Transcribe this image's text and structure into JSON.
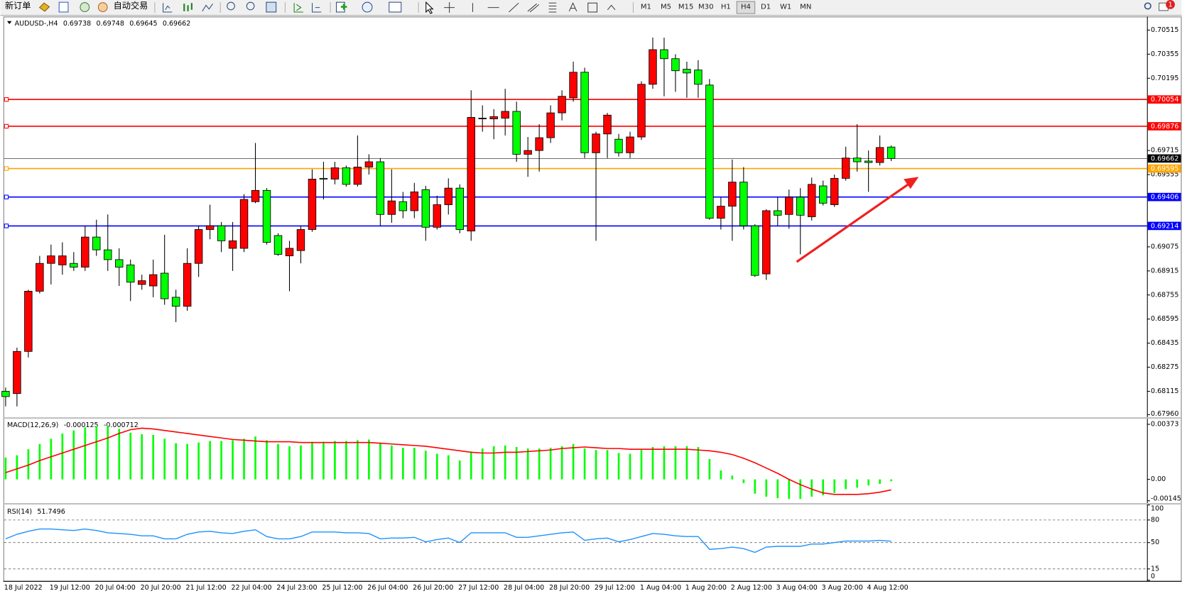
{
  "toolbar": {
    "buttons": [
      "新订单",
      "自动交易"
    ],
    "timeframes": [
      "M1",
      "M5",
      "M15",
      "M30",
      "H1",
      "H4",
      "D1",
      "W1",
      "MN"
    ],
    "active_timeframe": "H4"
  },
  "notifications": 1,
  "chart_data": [
    {
      "type": "candlestick",
      "title": "AUDUSD-,H4",
      "categories": [
        "18 Jul 2022",
        null,
        null,
        null,
        "19 Jul 12:00",
        null,
        null,
        null,
        "20 Jul 04:00",
        null,
        null,
        null,
        "20 Jul 20:00",
        null,
        null,
        null,
        "21 Jul 12:00",
        null,
        null,
        null,
        "22 Jul 04:00",
        null,
        null,
        null,
        "24 Jul 23:00",
        null,
        null,
        null,
        "25 Jul 12:00",
        null,
        null,
        null,
        "26 Jul 04:00",
        null,
        null,
        null,
        "26 Jul 20:00",
        null,
        null,
        null,
        "27 Jul 12:00",
        null,
        null,
        null,
        "28 Jul 04:00",
        null,
        null,
        null,
        "28 Jul 20:00",
        null,
        null,
        null,
        "29 Jul 12:00",
        null,
        null,
        null,
        "1 Aug 04:00",
        null,
        null,
        null,
        "1 Aug 20:00",
        null,
        null,
        null,
        "2 Aug 12:00",
        null,
        null,
        null,
        "3 Aug 04:00",
        null,
        null,
        null,
        "3 Aug 20:00",
        null,
        null,
        null,
        "4 Aug 12:00",
        null,
        null
      ],
      "open": [
        0.68115,
        0.681,
        0.6838,
        0.6878,
        0.68965,
        0.68955,
        0.68965,
        0.6894,
        0.6914,
        0.69055,
        0.6899,
        0.68955,
        0.68825,
        0.68815,
        0.689,
        0.6874,
        0.6868,
        0.68965,
        0.6919,
        0.69215,
        0.69065,
        0.69065,
        0.69375,
        0.6945,
        0.6915,
        0.69015,
        0.6905,
        0.6919,
        0.6953,
        0.69525,
        0.696,
        0.6949,
        0.69605,
        0.6964,
        0.6929,
        0.69375,
        0.69315,
        0.69455,
        0.69205,
        0.69355,
        0.69465,
        0.6918,
        0.69925,
        0.69925,
        0.6993,
        0.69975,
        0.6969,
        0.69715,
        0.698,
        0.69965,
        0.70065,
        0.70235,
        0.697,
        0.69825,
        0.6979,
        0.697,
        0.69805,
        0.70155,
        0.70385,
        0.70325,
        0.70255,
        0.7025,
        0.7015,
        0.69265,
        0.69345,
        0.69505,
        0.69215,
        0.68895,
        0.69315,
        0.6929,
        0.69405,
        0.69275,
        0.6948,
        0.69355,
        0.6953,
        0.69665,
        0.69645,
        0.69635,
        0.69738
      ],
      "high": [
        0.6814,
        0.68405,
        0.6879,
        0.69015,
        0.6909,
        0.69105,
        0.6904,
        0.69215,
        0.69255,
        0.6929,
        0.69065,
        0.6899,
        0.6889,
        0.6899,
        0.69155,
        0.6879,
        0.69065,
        0.69215,
        0.69355,
        0.6924,
        0.6924,
        0.69425,
        0.69765,
        0.69465,
        0.69165,
        0.69115,
        0.69215,
        0.6959,
        0.6964,
        0.6964,
        0.69615,
        0.69815,
        0.6969,
        0.69665,
        0.6959,
        0.6944,
        0.695,
        0.6948,
        0.69415,
        0.6953,
        0.6949,
        0.70115,
        0.70015,
        0.6999,
        0.70125,
        0.7004,
        0.69805,
        0.6989,
        0.70015,
        0.70115,
        0.70305,
        0.70265,
        0.6984,
        0.69965,
        0.69825,
        0.6984,
        0.70175,
        0.70465,
        0.70465,
        0.70355,
        0.70305,
        0.70315,
        0.7019,
        0.69405,
        0.69655,
        0.69605,
        0.69225,
        0.69325,
        0.69405,
        0.69455,
        0.69465,
        0.69535,
        0.69515,
        0.69555,
        0.6974,
        0.6989,
        0.69715,
        0.69815,
        0.69748
      ],
      "low": [
        0.68015,
        0.68015,
        0.6834,
        0.68765,
        0.68825,
        0.6889,
        0.68915,
        0.68915,
        0.69015,
        0.68915,
        0.68815,
        0.68715,
        0.6879,
        0.6874,
        0.6869,
        0.68575,
        0.6865,
        0.68875,
        0.69125,
        0.6904,
        0.68915,
        0.6904,
        0.69365,
        0.6909,
        0.69015,
        0.6878,
        0.68965,
        0.69175,
        0.6939,
        0.6949,
        0.69475,
        0.69475,
        0.69555,
        0.69215,
        0.69235,
        0.69265,
        0.69265,
        0.69115,
        0.6919,
        0.6929,
        0.69165,
        0.69115,
        0.6984,
        0.6979,
        0.69815,
        0.6964,
        0.6954,
        0.69575,
        0.69765,
        0.69915,
        0.7004,
        0.69665,
        0.69115,
        0.69665,
        0.69675,
        0.69665,
        0.69785,
        0.70125,
        0.70075,
        0.70105,
        0.70065,
        0.70065,
        0.69255,
        0.6919,
        0.69115,
        0.6919,
        0.68875,
        0.68855,
        0.69215,
        0.69195,
        0.69025,
        0.6925,
        0.6935,
        0.6934,
        0.69515,
        0.69575,
        0.6944,
        0.69615,
        0.69645
      ],
      "close": [
        0.6808,
        0.6838,
        0.6878,
        0.68965,
        0.69015,
        0.69015,
        0.6894,
        0.6914,
        0.69055,
        0.6899,
        0.6894,
        0.6884,
        0.6885,
        0.6889,
        0.6873,
        0.6868,
        0.68965,
        0.6919,
        0.69215,
        0.69115,
        0.69115,
        0.6939,
        0.6945,
        0.69105,
        0.69025,
        0.69065,
        0.6919,
        0.69525,
        0.69525,
        0.696,
        0.6949,
        0.69605,
        0.6964,
        0.6929,
        0.6938,
        0.69315,
        0.6944,
        0.69205,
        0.69355,
        0.69465,
        0.6919,
        0.69935,
        0.6993,
        0.6994,
        0.69975,
        0.6969,
        0.69715,
        0.698,
        0.69965,
        0.70075,
        0.70235,
        0.697,
        0.69825,
        0.6995,
        0.697,
        0.69805,
        0.70155,
        0.70385,
        0.70325,
        0.70245,
        0.7023,
        0.70155,
        0.69265,
        0.69345,
        0.69505,
        0.69215,
        0.68885,
        0.69315,
        0.69285,
        0.69405,
        0.69285,
        0.6949,
        0.69365,
        0.6953,
        0.69665,
        0.6964,
        0.69635,
        0.69735,
        0.69662
      ],
      "up_color": "#ff0000",
      "down_color": "#00ff00",
      "ylim": [
        0.6795,
        0.70595
      ],
      "yticks": [
        0.70515,
        0.70355,
        0.70195,
        0.69715,
        0.69555,
        0.69075,
        0.68915,
        0.68755,
        0.68595,
        0.68435,
        0.68275,
        0.68115,
        {
          "value": 0.6796,
          "label": "0.67960"
        }
      ],
      "levels": [
        {
          "value": 0.70054,
          "color": "#ff0000"
        },
        {
          "value": 0.69876,
          "color": "#ff0000"
        },
        {
          "value": 0.69595,
          "color": "#ffa500"
        },
        {
          "value": 0.69406,
          "color": "#0000ff"
        },
        {
          "value": 0.69214,
          "color": "#0000ff"
        }
      ]
    },
    {
      "type": "macd",
      "title": "MACD(12,26,9)",
      "histogram": [
        0.001479,
        0.001632,
        0.00204,
        0.002397,
        0.002754,
        0.003111,
        0.003315,
        0.003519,
        0.003621,
        0.003621,
        0.003417,
        0.003162,
        0.00306,
        0.003009,
        0.002754,
        0.002448,
        0.002397,
        0.002499,
        0.002601,
        0.002601,
        0.002652,
        0.002754,
        0.002907,
        0.002652,
        0.002397,
        0.002244,
        0.002295,
        0.00255,
        0.00255,
        0.002601,
        0.002601,
        0.002652,
        0.002703,
        0.002499,
        0.002295,
        0.002142,
        0.002142,
        0.001938,
        0.001734,
        0.001632,
        0.001275,
        0.001887,
        0.002091,
        0.002244,
        0.002295,
        0.002193,
        0.002091,
        0.002091,
        0.002142,
        0.002244,
        0.002397,
        0.002091,
        0.001989,
        0.001989,
        0.001785,
        0.001734,
        0.001989,
        0.002193,
        0.002244,
        0.002244,
        0.002244,
        0.002193,
        0.001377,
        0.000612,
        0.000255,
        -0.000255,
        -0.000969,
        -0.001173,
        -0.001275,
        -0.001326,
        -0.001326,
        -0.001173,
        -0.001071,
        -0.000918,
        -0.000663,
        -0.000561,
        -0.000408,
        -0.000306,
        -0.000125
      ],
      "signal": [
        0.000459,
        0.000714,
        0.000969,
        0.001275,
        0.00153,
        0.001785,
        0.00204,
        0.002295,
        0.00255,
        0.002805,
        0.003111,
        0.003366,
        0.003468,
        0.003417,
        0.003315,
        0.003213,
        0.003111,
        0.003009,
        0.002907,
        0.002805,
        0.002703,
        0.002652,
        0.002601,
        0.00255,
        0.00255,
        0.00255,
        0.002499,
        0.002499,
        0.002499,
        0.002499,
        0.002499,
        0.002499,
        0.002499,
        0.002448,
        0.002397,
        0.002346,
        0.002295,
        0.002244,
        0.002142,
        0.00204,
        0.001938,
        0.001836,
        0.001785,
        0.001785,
        0.001836,
        0.001836,
        0.001887,
        0.001938,
        0.001989,
        0.002091,
        0.002142,
        0.002193,
        0.002142,
        0.002091,
        0.002091,
        0.00204,
        0.00204,
        0.00204,
        0.00204,
        0.00204,
        0.00204,
        0.001989,
        0.001938,
        0.001836,
        0.001683,
        0.001428,
        0.001122,
        0.000765,
        0.000408,
        0,
        -0.000357,
        -0.000663,
        -0.000918,
        -0.00102,
        -0.00102,
        -0.00102,
        -0.000969,
        -0.000867,
        -0.000712
      ],
      "histogram_color": "#00ff00",
      "signal_color": "#ff0000",
      "ylim": [
        -0.00158,
        0.00408
      ],
      "yticks": [
        0.00373,
        {
          "value": 0,
          "label": "0.00"
        },
        -0.00145
      ]
    },
    {
      "type": "line",
      "title": "RSI(14)",
      "values": [
        55,
        61,
        65,
        68,
        68,
        67,
        66,
        68,
        66,
        63,
        62,
        61,
        59,
        59,
        55,
        55,
        61,
        64,
        65,
        63,
        62,
        65,
        67,
        58,
        55,
        55,
        58,
        64,
        64,
        64,
        63,
        63,
        62,
        55,
        56,
        56,
        57,
        51,
        54,
        56,
        50,
        63,
        63,
        63,
        63,
        57,
        57,
        59,
        61,
        63,
        64,
        53,
        55,
        56,
        51,
        54,
        58,
        62,
        61,
        59,
        58,
        58,
        41,
        42,
        44,
        42,
        37,
        44,
        45,
        45,
        45,
        48,
        48,
        50,
        52,
        52,
        52,
        53,
        51.7496
      ],
      "color": "#1e90ff",
      "ylim": [
        0,
        100
      ],
      "yticks": [
        100,
        80,
        50,
        15,
        0
      ],
      "levels": [
        80,
        50,
        15
      ]
    }
  ]
}
